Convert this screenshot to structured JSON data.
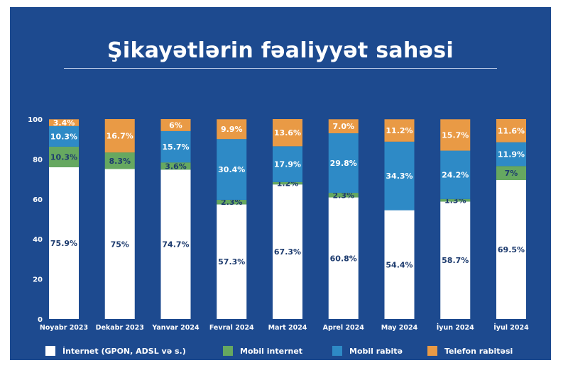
{
  "title": "Şikayətlərin fəaliyyət sahəsi",
  "chart_data": {
    "type": "bar",
    "stacked": true,
    "categories": [
      "Noyabr 2023",
      "Dekabr 2023",
      "Yanvar 2024",
      "Fevral 2024",
      "Mart 2024",
      "Aprel 2024",
      "May 2024",
      "İyun 2024",
      "İyul 2024"
    ],
    "series": [
      {
        "name": "İnternet (GPON, ADSL və s.)",
        "color": "#ffffff",
        "label_color": "#1d3b6e",
        "values": [
          75.9,
          75,
          74.7,
          57.3,
          67.3,
          60.8,
          54.4,
          58.7,
          69.5
        ],
        "labels": [
          "75.9%",
          "75%",
          "74.7%",
          "57.3%",
          "67.3%",
          "60.8%",
          "54.4%",
          "58.7%",
          "69.5%"
        ]
      },
      {
        "name": "Mobil internet",
        "color": "#66a860",
        "label_color": "#1d3b6e",
        "values": [
          10.3,
          8.3,
          3.6,
          2.3,
          1.2,
          2.3,
          0,
          1.3,
          7
        ],
        "labels": [
          "10.3%",
          "8.3%",
          "3.6%",
          "2.3%",
          "1.2%",
          "2.3%",
          "",
          "1.3%",
          "7%"
        ]
      },
      {
        "name": "Mobil rabitə",
        "color": "#2e8ac6",
        "label_color": "#ffffff",
        "values": [
          10.3,
          0,
          15.7,
          30.4,
          17.9,
          29.8,
          34.3,
          24.2,
          11.9
        ],
        "labels": [
          "10.3%",
          "",
          "15.7%",
          "30.4%",
          "17.9%",
          "29.8%",
          "34.3%",
          "24.2%",
          "11.9%"
        ]
      },
      {
        "name": "Telefon rabitəsi",
        "color": "#e99a45",
        "label_color": "#ffffff",
        "values": [
          3.4,
          16.7,
          6,
          9.9,
          13.6,
          7.0,
          11.2,
          15.7,
          11.6
        ],
        "labels": [
          "3.4%",
          "16.7%",
          "6%",
          "9.9%",
          "13.6%",
          "7.0%",
          "11.2%",
          "15.7%",
          "11.6%"
        ]
      }
    ],
    "ylim": [
      0,
      100
    ],
    "yticks": [
      "0",
      "20",
      "40",
      "60",
      "80",
      "100"
    ],
    "grid": false,
    "legend_position": "bottom"
  }
}
